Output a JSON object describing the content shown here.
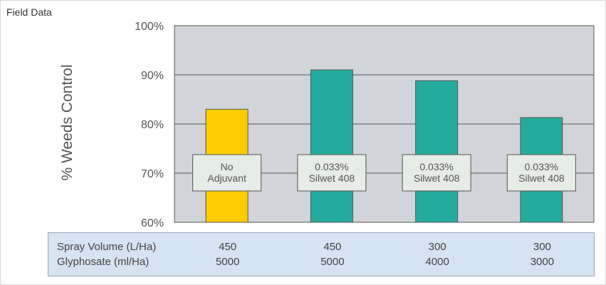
{
  "header": {
    "label": "Field Data"
  },
  "colors": {
    "plot_background": "#d1d5d9",
    "no_adjuvant_bar": "#ffcc00",
    "silwet_bar": "#25ab9e",
    "table_background": "#d6e3f2",
    "label_box": "#e6ece6"
  },
  "chart_data": {
    "type": "bar",
    "ylabel": "% Weeds Control",
    "xlabel": "",
    "ylim": [
      60,
      100
    ],
    "yticks": [
      "60%",
      "70%",
      "80%",
      "90%",
      "100%"
    ],
    "ytick_values": [
      60,
      70,
      80,
      90,
      100
    ],
    "grid": true,
    "bars": [
      {
        "value": 83,
        "label": [
          "No",
          "Adjuvant"
        ],
        "color": "#ffcc00"
      },
      {
        "value": 91,
        "label": [
          "0.033%",
          "Silwet 408"
        ],
        "color": "#25ab9e"
      },
      {
        "value": 88.8,
        "label": [
          "0.033%",
          "Silwet 408"
        ],
        "color": "#25ab9e"
      },
      {
        "value": 81.3,
        "label": [
          "0.033%",
          "Silwet 408"
        ],
        "color": "#25ab9e"
      }
    ]
  },
  "table": {
    "rows": [
      {
        "label": "Spray Volume (L/Ha)",
        "values": [
          "450",
          "450",
          "300",
          "300"
        ]
      },
      {
        "label": "Glyphosate (ml/Ha)",
        "values": [
          "5000",
          "5000",
          "4000",
          "3000"
        ]
      }
    ]
  }
}
